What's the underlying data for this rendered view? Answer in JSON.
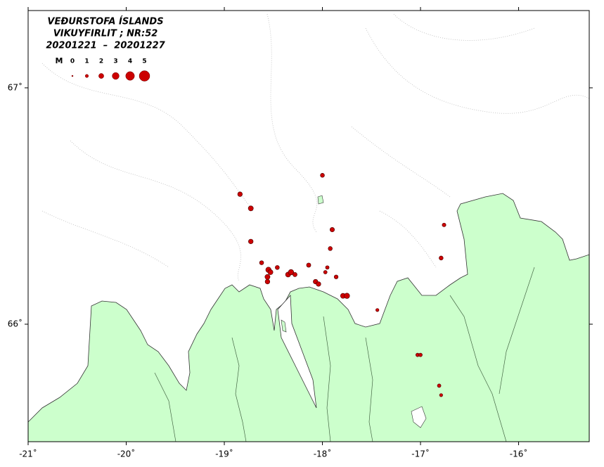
{
  "chart_data": {
    "type": "scatter",
    "title": "VEÐURSTOFA ÍSLANDS",
    "subtitle": "VIKUYFIRLIT ; NR:52",
    "period": "20201221  –  20201227",
    "legend_label": "M",
    "legend_sizes": [
      0,
      1,
      2,
      3,
      4,
      5
    ],
    "color": "#cc0000",
    "land_color": "#ccffcc",
    "xlim": [
      -21,
      -15.28
    ],
    "ylim": [
      65.503,
      67.327
    ],
    "xticks": [
      {
        "value": -21,
        "label": "-21˚"
      },
      {
        "value": -20,
        "label": "-20˚"
      },
      {
        "value": -19,
        "label": "-19˚"
      },
      {
        "value": -18,
        "label": "-18˚"
      },
      {
        "value": -17,
        "label": "-17˚"
      },
      {
        "value": -16,
        "label": "-16˚"
      }
    ],
    "yticks": [
      {
        "value": 66,
        "label": "66˚"
      },
      {
        "value": 67,
        "label": "67˚"
      }
    ],
    "x": [
      -18.0,
      -18.84,
      -18.73,
      -17.9,
      -18.73,
      -17.92,
      -16.79,
      -16.76,
      -18.62,
      -18.55,
      -18.56,
      -18.56,
      -18.46,
      -18.35,
      -18.32,
      -18.28,
      -18.14,
      -17.95,
      -17.97,
      -17.86,
      -18.07,
      -18.04,
      -17.79,
      -17.75,
      -17.44,
      -17.03,
      -17.0,
      -16.81,
      -16.79,
      -18.53
    ],
    "y": [
      66.63,
      66.55,
      66.49,
      66.4,
      66.35,
      66.32,
      66.28,
      66.42,
      66.26,
      66.23,
      66.2,
      66.18,
      66.24,
      66.21,
      66.22,
      66.21,
      66.25,
      66.24,
      66.22,
      66.2,
      66.18,
      66.17,
      66.12,
      66.12,
      66.06,
      65.87,
      65.87,
      65.74,
      65.7,
      66.22
    ],
    "magnitude": [
      1.5,
      1.8,
      2.0,
      1.7,
      1.8,
      1.5,
      1.5,
      1.3,
      1.5,
      2.2,
      2.0,
      1.8,
      1.5,
      2.0,
      2.2,
      1.6,
      1.6,
      1.2,
      1.2,
      1.4,
      1.8,
      1.8,
      2.0,
      2.2,
      1.0,
      1.2,
      1.2,
      1.2,
      1.0,
      2.0
    ]
  }
}
